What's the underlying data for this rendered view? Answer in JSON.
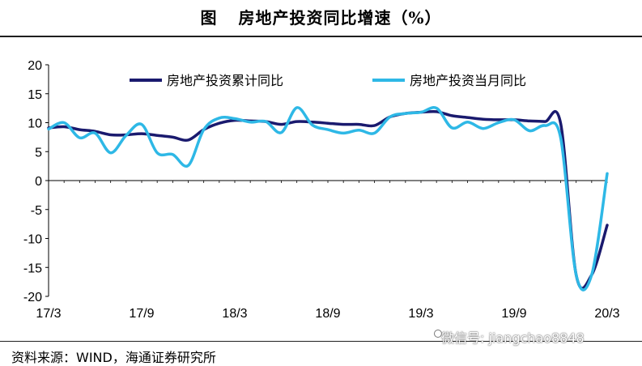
{
  "title_prefix": "图",
  "title": "房地产投资同比增速（%）",
  "source": "资料来源：WIND，海通证券研究所",
  "watermark": "微信号: jiangchao8848",
  "chart_data": {
    "type": "line",
    "title": "房地产投资同比增速（%）",
    "xlabel": "",
    "ylabel": "",
    "ylim": [
      -20,
      20
    ],
    "yticks": [
      20,
      15,
      10,
      5,
      0,
      -5,
      -10,
      -15,
      -20
    ],
    "x_tick_labels": [
      {
        "label": "17/3",
        "index": 0
      },
      {
        "label": "17/9",
        "index": 6
      },
      {
        "label": "18/3",
        "index": 12
      },
      {
        "label": "18/9",
        "index": 18
      },
      {
        "label": "19/3",
        "index": 24
      },
      {
        "label": "19/9",
        "index": 30
      },
      {
        "label": "20/3",
        "index": 36
      }
    ],
    "x": [
      "17/3",
      "17/4",
      "17/5",
      "17/6",
      "17/7",
      "17/8",
      "17/9",
      "17/10",
      "17/11",
      "17/12",
      "18/1",
      "18/2",
      "18/3",
      "18/4",
      "18/5",
      "18/6",
      "18/7",
      "18/8",
      "18/9",
      "18/10",
      "18/11",
      "18/12",
      "19/1",
      "19/2",
      "19/3",
      "19/4",
      "19/5",
      "19/6",
      "19/7",
      "19/8",
      "19/9",
      "19/10",
      "19/11",
      "19/12",
      "20/1",
      "20/2",
      "20/3"
    ],
    "series": [
      {
        "name": "房地产投资累计同比",
        "color": "#1a1a6e",
        "values": [
          9.1,
          9.3,
          8.8,
          8.5,
          7.9,
          7.9,
          8.1,
          7.8,
          7.5,
          7.0,
          8.8,
          9.9,
          10.4,
          10.3,
          10.2,
          9.7,
          10.2,
          10.1,
          9.9,
          9.7,
          9.7,
          9.5,
          11.0,
          11.6,
          11.8,
          11.9,
          11.2,
          10.9,
          10.6,
          10.5,
          10.5,
          10.3,
          10.2,
          9.9,
          -16.3,
          -16.3,
          -7.7
        ]
      },
      {
        "name": "房地产投资当月同比",
        "color": "#2eb8e6",
        "values": [
          8.9,
          10.0,
          7.4,
          8.2,
          4.8,
          7.8,
          9.7,
          4.8,
          4.5,
          2.6,
          8.8,
          10.8,
          10.7,
          10.1,
          10.2,
          8.3,
          12.6,
          9.6,
          8.8,
          8.2,
          8.7,
          8.2,
          11.0,
          11.6,
          11.8,
          12.5,
          9.1,
          10.1,
          9.0,
          10.0,
          10.5,
          8.6,
          9.5,
          7.4,
          -16.3,
          -16.3,
          1.2
        ]
      }
    ],
    "legend_position": "top",
    "grid": false
  }
}
